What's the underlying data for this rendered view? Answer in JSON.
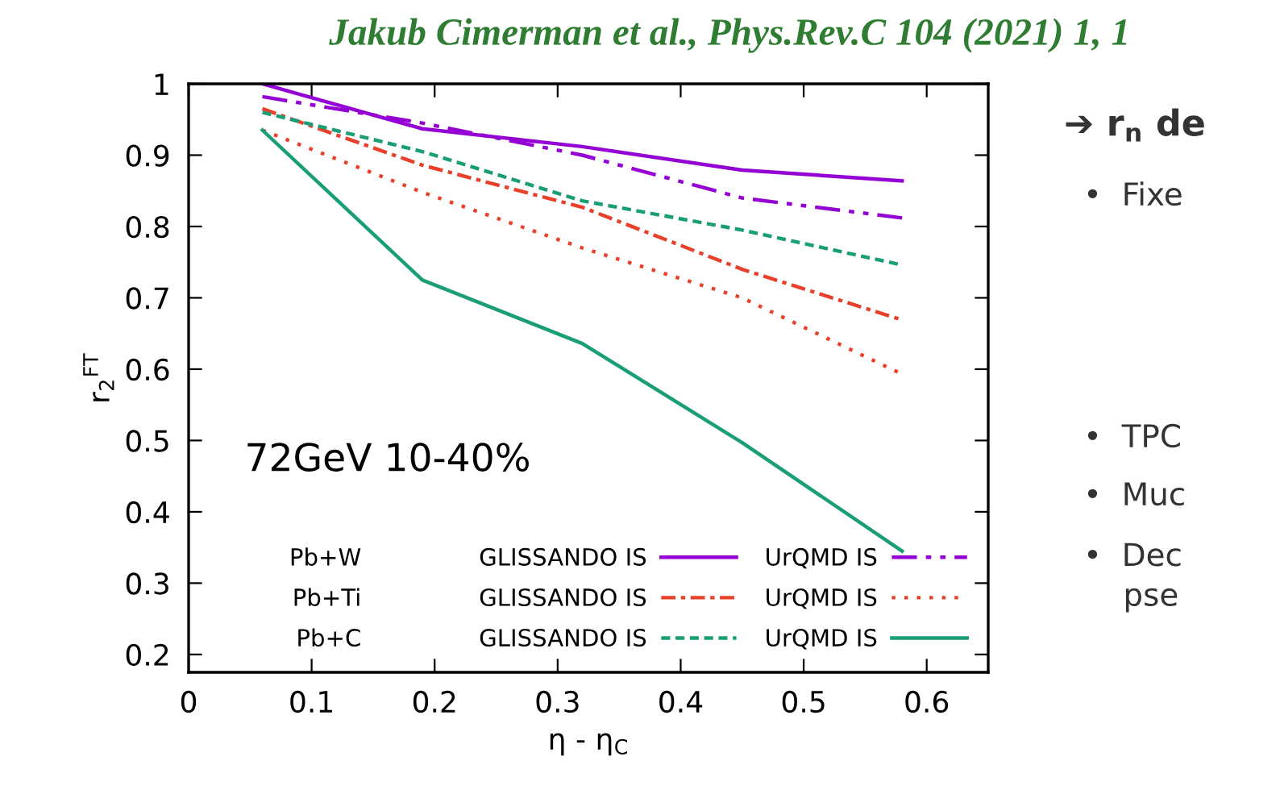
{
  "chart_data": {
    "type": "line",
    "title": "Jakub Cimerman et al., Phys.Rev.C 104 (2021) 1, 1",
    "xlabel": "η - η$_{C}$",
    "ylabel": "r$_{2}$$^{FT}$",
    "x": [
      0.06,
      0.19,
      0.32,
      0.45,
      0.58
    ],
    "series": [
      {
        "name": "GLISSANDO IS",
        "color": "#9400d3",
        "line_style": "solid",
        "values": [
          1.0,
          0.937,
          0.912,
          0.879,
          0.864
        ]
      },
      {
        "name": "UrQMD IS",
        "color": "#9400d3",
        "line_style": "dashdotdot",
        "values": [
          0.982,
          0.945,
          0.9,
          0.84,
          0.812
        ]
      },
      {
        "name": "GLISSANDO IS",
        "color": "#e8402a",
        "line_style": "dashdot",
        "values": [
          0.965,
          0.886,
          0.827,
          0.74,
          0.669
        ]
      },
      {
        "name": "UrQMD IS",
        "color": "#e8402a",
        "line_style": "dotted",
        "values": [
          0.935,
          0.848,
          0.77,
          0.7,
          0.593
        ]
      },
      {
        "name": "GLISSANDO IS",
        "color": "#1a9e77",
        "line_style": "dashed",
        "values": [
          0.96,
          0.905,
          0.836,
          0.795,
          0.746
        ]
      },
      {
        "name": "UrQMD IS",
        "color": "#1a9e77",
        "line_style": "solid",
        "values": [
          0.935,
          0.725,
          0.636,
          0.497,
          0.345
        ]
      }
    ],
    "xlim": [
      0,
      0.65
    ],
    "ylim": [
      0.175,
      1.0
    ],
    "xticks": [
      0,
      0.1,
      0.2,
      0.3,
      0.4,
      0.5,
      0.6
    ],
    "yticks": [
      0.2,
      0.3,
      0.4,
      0.5,
      0.6,
      0.7,
      0.8,
      0.9,
      {
        "value": 1.0,
        "label": "1"
      }
    ],
    "grid": false,
    "marker": "none",
    "legend": "bottom right",
    "annotations": [
      "72GeV 10-40%",
      "Pb+W",
      "Pb+Ti",
      "Pb+C",
      "➔ r$_{n}$ de",
      "•  Fixe",
      "•  TPC",
      "•  Muc",
      "•  Dec\n    pse"
    ]
  }
}
